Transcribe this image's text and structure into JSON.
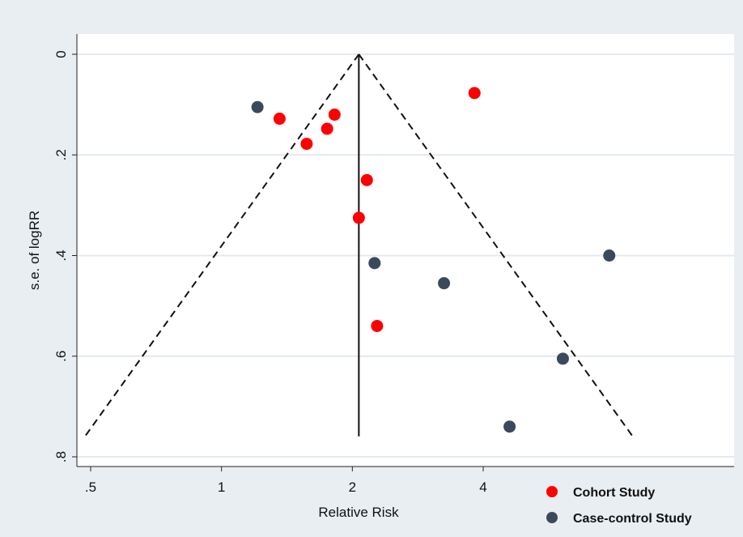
{
  "chart_data": {
    "type": "scatter",
    "title": "",
    "xlabel": "Relative Risk",
    "ylabel": "s.e. of logRR",
    "x_scale": "log",
    "xlim": [
      0.47,
      7.9
    ],
    "ylim": [
      0.8,
      0.0
    ],
    "y_inverted": true,
    "grid": true,
    "legend_position": "bottom-right",
    "x_ticks": [
      {
        "value": 0.5,
        "label": ".5"
      },
      {
        "value": 1,
        "label": "1"
      },
      {
        "value": 2,
        "label": "2"
      },
      {
        "value": 4,
        "label": "4"
      }
    ],
    "y_ticks": [
      {
        "value": 0,
        "label": "0"
      },
      {
        "value": 0.2,
        "label": ".2"
      },
      {
        "value": 0.4,
        "label": ".4"
      },
      {
        "value": 0.6,
        "label": ".6"
      },
      {
        "value": 0.8,
        "label": ".8"
      }
    ],
    "pooled_estimate": 2.07,
    "funnel_bottom_se": 0.74,
    "series": [
      {
        "name": "Cohort Study",
        "color": "#ff0000",
        "points": [
          {
            "x": 1.36,
            "y": 0.128
          },
          {
            "x": 1.57,
            "y": 0.178
          },
          {
            "x": 1.75,
            "y": 0.148
          },
          {
            "x": 1.82,
            "y": 0.12
          },
          {
            "x": 2.16,
            "y": 0.25
          },
          {
            "x": 2.07,
            "y": 0.325
          },
          {
            "x": 2.28,
            "y": 0.54
          },
          {
            "x": 3.82,
            "y": 0.077
          }
        ]
      },
      {
        "name": "Case-control Study",
        "color": "#3a4a5c",
        "points": [
          {
            "x": 1.21,
            "y": 0.105
          },
          {
            "x": 2.25,
            "y": 0.415
          },
          {
            "x": 3.25,
            "y": 0.455
          },
          {
            "x": 4.6,
            "y": 0.74
          },
          {
            "x": 6.1,
            "y": 0.605
          },
          {
            "x": 7.8,
            "y": 0.4
          }
        ]
      }
    ]
  }
}
